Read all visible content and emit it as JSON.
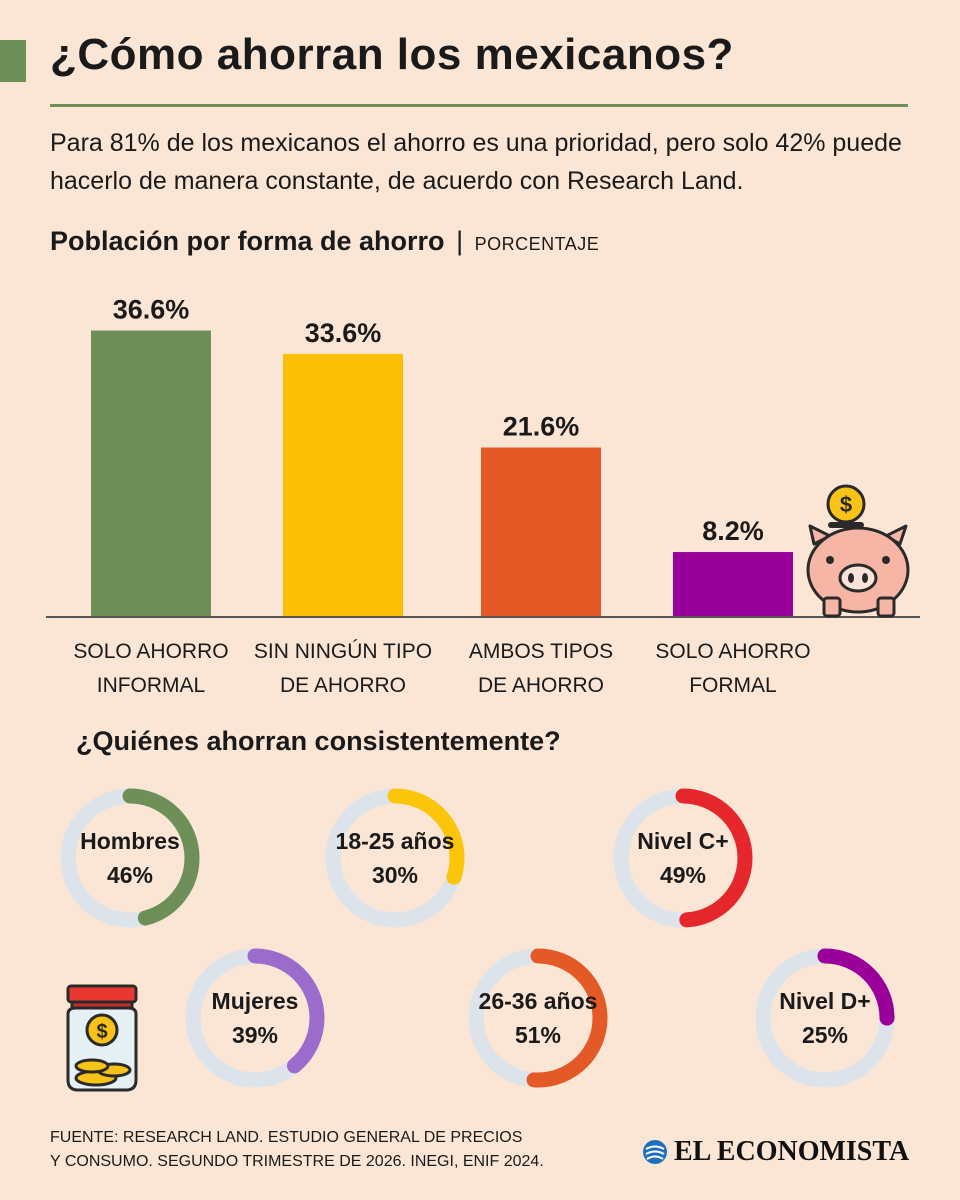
{
  "header": {
    "title": "¿Cómo ahorran los mexicanos?",
    "subtitle": "Para 81% de los mexicanos el ahorro es una prioridad, pero solo 42% puede hacerlo de manera constante, de acuerdo con Research Land."
  },
  "chart_data": [
    {
      "type": "bar",
      "title": "Población por forma de ahorro",
      "separator": "|",
      "unit": "PORCENTAJE",
      "categories": [
        [
          "SOLO AHORRO",
          "INFORMAL"
        ],
        [
          "SIN NINGÚN TIPO",
          "DE AHORRO"
        ],
        [
          "AMBOS TIPOS",
          "DE AHORRO"
        ],
        [
          "SOLO AHORRO",
          "FORMAL"
        ]
      ],
      "values": [
        36.6,
        33.6,
        21.6,
        8.2
      ],
      "value_labels": [
        "36.6%",
        "33.6%",
        "21.6%",
        "8.2%"
      ],
      "colors": [
        "#6e8f58",
        "#fbbf05",
        "#e35a27",
        "#980099"
      ],
      "ylim": [
        0,
        40
      ]
    },
    {
      "type": "donut",
      "title": "¿Quiénes ahorran consistentemente?",
      "track_color": "#dde3ea",
      "items": [
        {
          "label": "Hombres",
          "value": 46,
          "value_label": "46%",
          "color": "#6e8f58"
        },
        {
          "label": "18-25 años",
          "value": 30,
          "value_label": "30%",
          "color": "#fbc60a"
        },
        {
          "label": "Nivel C+",
          "value": 49,
          "value_label": "49%",
          "color": "#e5262b"
        },
        {
          "label": "Mujeres",
          "value": 39,
          "value_label": "39%",
          "color": "#9b6ccc"
        },
        {
          "label": "26-36 años",
          "value": 51,
          "value_label": "51%",
          "color": "#e35a27"
        },
        {
          "label": "Nivel D+",
          "value": 25,
          "value_label": "25%",
          "color": "#980099"
        }
      ]
    }
  ],
  "footer": {
    "source_line1": "FUENTE: RESEARCH LAND. ESTUDIO GENERAL DE PRECIOS",
    "source_line2": "Y CONSUMO. SEGUNDO TRIMESTRE DE 2026. INEGI, ENIF 2024.",
    "brand": "EL ECONOMISTA",
    "brand_color": "#1f6fbf"
  },
  "icons": [
    "piggy-bank-icon",
    "coin-jar-icon",
    "el-economista-logo-icon"
  ]
}
